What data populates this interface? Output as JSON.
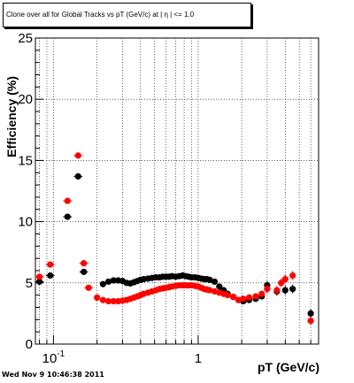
{
  "title": "Clone  over all for Global Tracks vs pT (GeV/c) at |  η | <= 1.0",
  "timestamp": "Wed Nov  9 10:46:38 2011",
  "chart_data": {
    "type": "scatter",
    "xlabel": "pT (GeV/c)",
    "ylabel": "Efficiency (%)",
    "xscale": "log",
    "xlim": [
      0.075,
      6.8
    ],
    "ylim": [
      0,
      25
    ],
    "grid": true,
    "x_tick_labels": [
      {
        "x": 0.1,
        "base": "10",
        "exp": "-1"
      },
      {
        "x": 1,
        "base": "1",
        "exp": ""
      }
    ],
    "y_tick_labels": [
      {
        "y": 0,
        "text": "0"
      },
      {
        "y": 5,
        "text": "5"
      },
      {
        "y": 10,
        "text": "10"
      },
      {
        "y": 15,
        "text": "15"
      },
      {
        "y": 20,
        "text": "20"
      },
      {
        "y": 25,
        "text": "25"
      }
    ],
    "series": [
      {
        "color": "#000000",
        "points": [
          [
            0.08,
            5.1
          ],
          [
            0.095,
            5.6
          ],
          [
            0.125,
            10.4
          ],
          [
            0.148,
            13.7
          ],
          [
            0.162,
            5.9
          ],
          [
            0.22,
            4.9
          ],
          [
            0.24,
            5.1
          ],
          [
            0.26,
            5.2
          ],
          [
            0.28,
            5.2
          ],
          [
            0.3,
            5.15
          ],
          [
            0.32,
            5.0
          ],
          [
            0.34,
            4.95
          ],
          [
            0.36,
            5.05
          ],
          [
            0.38,
            5.15
          ],
          [
            0.4,
            5.25
          ],
          [
            0.42,
            5.3
          ],
          [
            0.45,
            5.35
          ],
          [
            0.48,
            5.4
          ],
          [
            0.51,
            5.45
          ],
          [
            0.54,
            5.45
          ],
          [
            0.57,
            5.5
          ],
          [
            0.6,
            5.5
          ],
          [
            0.63,
            5.5
          ],
          [
            0.66,
            5.55
          ],
          [
            0.7,
            5.5
          ],
          [
            0.74,
            5.55
          ],
          [
            0.78,
            5.6
          ],
          [
            0.82,
            5.55
          ],
          [
            0.86,
            5.5
          ],
          [
            0.9,
            5.45
          ],
          [
            0.95,
            5.45
          ],
          [
            1.0,
            5.4
          ],
          [
            1.05,
            5.35
          ],
          [
            1.1,
            5.3
          ],
          [
            1.15,
            5.3
          ],
          [
            1.2,
            5.25
          ],
          [
            1.3,
            5.1
          ],
          [
            1.4,
            4.7
          ],
          [
            1.5,
            4.4
          ],
          [
            1.6,
            4.1
          ],
          [
            1.75,
            3.85
          ],
          [
            1.9,
            3.6
          ],
          [
            2.05,
            3.5
          ],
          [
            2.25,
            3.6
          ],
          [
            2.5,
            3.7
          ],
          [
            2.75,
            3.9
          ],
          [
            3.0,
            4.8
          ],
          [
            3.5,
            4.3
          ],
          [
            4.0,
            4.4
          ],
          [
            4.5,
            4.5
          ],
          [
            6.0,
            2.5
          ]
        ]
      },
      {
        "color": "#ff0000",
        "points": [
          [
            0.08,
            5.5
          ],
          [
            0.095,
            6.5
          ],
          [
            0.125,
            11.7
          ],
          [
            0.148,
            15.4
          ],
          [
            0.162,
            6.6
          ],
          [
            0.175,
            4.6
          ],
          [
            0.2,
            3.8
          ],
          [
            0.22,
            3.6
          ],
          [
            0.24,
            3.5
          ],
          [
            0.26,
            3.5
          ],
          [
            0.28,
            3.5
          ],
          [
            0.3,
            3.55
          ],
          [
            0.32,
            3.6
          ],
          [
            0.34,
            3.7
          ],
          [
            0.36,
            3.8
          ],
          [
            0.38,
            3.9
          ],
          [
            0.4,
            4.0
          ],
          [
            0.42,
            4.1
          ],
          [
            0.45,
            4.2
          ],
          [
            0.48,
            4.3
          ],
          [
            0.51,
            4.4
          ],
          [
            0.54,
            4.5
          ],
          [
            0.57,
            4.55
          ],
          [
            0.6,
            4.6
          ],
          [
            0.63,
            4.65
          ],
          [
            0.66,
            4.7
          ],
          [
            0.7,
            4.75
          ],
          [
            0.74,
            4.8
          ],
          [
            0.78,
            4.8
          ],
          [
            0.82,
            4.8
          ],
          [
            0.86,
            4.8
          ],
          [
            0.9,
            4.8
          ],
          [
            0.95,
            4.75
          ],
          [
            1.0,
            4.7
          ],
          [
            1.05,
            4.6
          ],
          [
            1.1,
            4.5
          ],
          [
            1.15,
            4.45
          ],
          [
            1.2,
            4.4
          ],
          [
            1.3,
            4.3
          ],
          [
            1.4,
            4.2
          ],
          [
            1.5,
            4.1
          ],
          [
            1.6,
            4.0
          ],
          [
            1.75,
            3.85
          ],
          [
            1.9,
            3.6
          ],
          [
            2.05,
            3.7
          ],
          [
            2.25,
            3.8
          ],
          [
            2.5,
            3.9
          ],
          [
            2.75,
            4.1
          ],
          [
            3.0,
            4.5
          ],
          [
            3.5,
            4.4
          ],
          [
            3.75,
            5.0
          ],
          [
            4.0,
            5.3
          ],
          [
            4.5,
            5.6
          ],
          [
            6.0,
            1.9
          ]
        ]
      }
    ]
  }
}
